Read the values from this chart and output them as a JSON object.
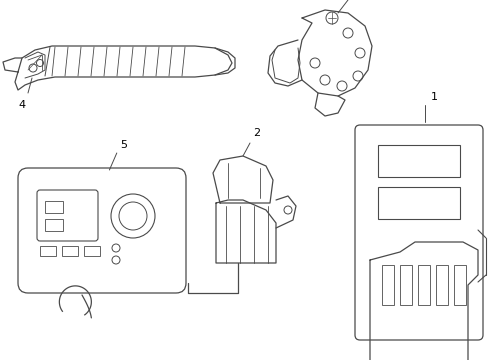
{
  "background_color": "#ffffff",
  "line_color": "#4a4a4a",
  "label_color": "#000000",
  "fig_width": 4.9,
  "fig_height": 3.6,
  "dpi": 100
}
